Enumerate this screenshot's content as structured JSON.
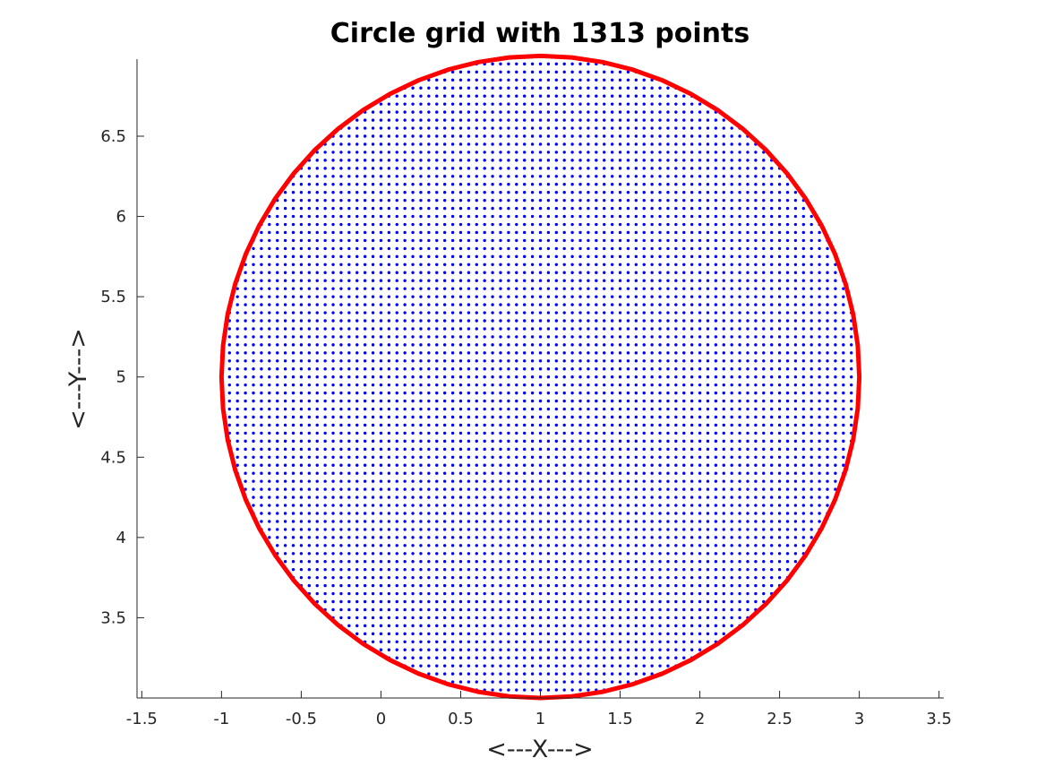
{
  "chart_data": {
    "type": "scatter",
    "title": "Circle grid with 1313 points",
    "xlabel": "<---X--->",
    "ylabel": "<---Y--->",
    "xlim": [
      -1.53,
      3.53
    ],
    "ylim": [
      3.0,
      6.98
    ],
    "xticks": [
      -1.5,
      -1,
      -0.5,
      0,
      0.5,
      1,
      1.5,
      2,
      2.5,
      3,
      3.5
    ],
    "xtick_labels": [
      "-1.5",
      "-1",
      "-0.5",
      "0",
      "0.5",
      "1",
      "1.5",
      "2",
      "2.5",
      "3",
      "3.5"
    ],
    "yticks": [
      3.5,
      4,
      4.5,
      5,
      5.5,
      6,
      6.5
    ],
    "ytick_labels": [
      "3.5",
      "4",
      "4.5",
      "5",
      "5.5",
      "6",
      "6.5"
    ],
    "grid": false,
    "circle": {
      "center": [
        1,
        5
      ],
      "radius": 2,
      "segments": 64,
      "color": "#ff0000"
    },
    "points": {
      "spacing": 0.05,
      "color": "#0000ff",
      "count": 1313
    }
  }
}
